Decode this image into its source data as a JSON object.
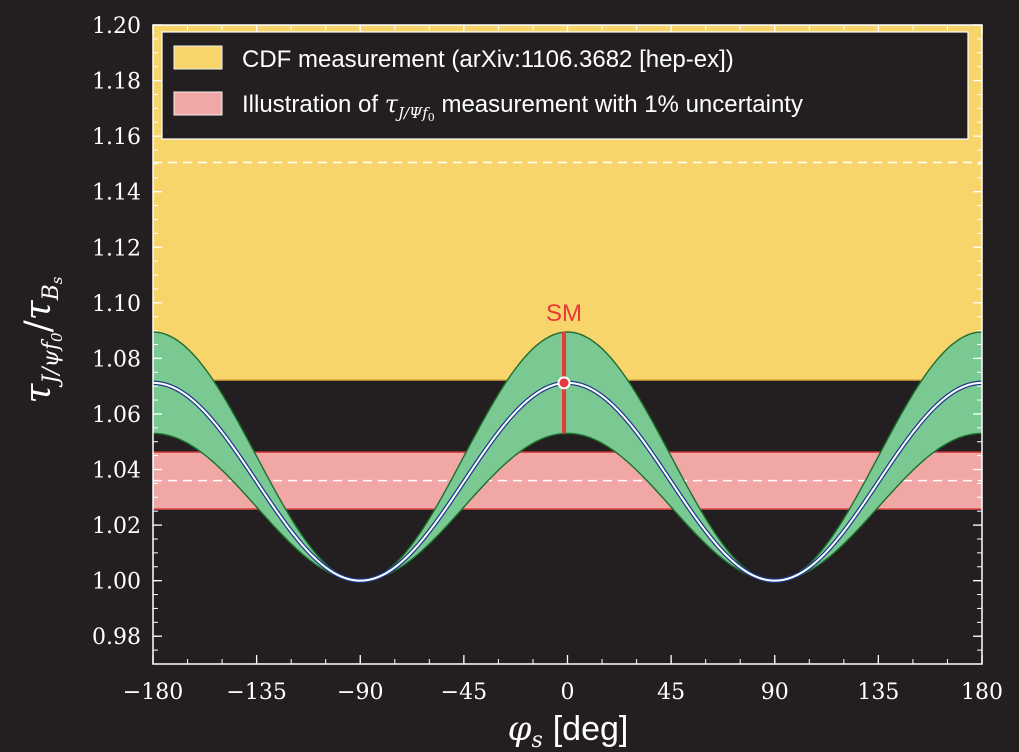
{
  "chart_data": {
    "type": "line",
    "xlabel_symbol": "φ",
    "xlabel_sub": "s",
    "xlabel_unit": "[deg]",
    "ylabel_tau1": "τ",
    "ylabel_sub1": "J/ψf",
    "ylabel_subsub1": "0",
    "ylabel_slash": "/",
    "ylabel_tau2": "τ",
    "ylabel_sub2": "B",
    "ylabel_subsub2": "s",
    "xlim": [
      -180,
      180
    ],
    "ylim": [
      0.97,
      1.2
    ],
    "x_ticks": [
      -180,
      -135,
      -90,
      -45,
      0,
      45,
      90,
      135,
      180
    ],
    "x_tick_labels": [
      "−180",
      "−135",
      "−90",
      "−45",
      "0",
      "45",
      "90",
      "135",
      "180"
    ],
    "y_ticks": [
      0.98,
      1.0,
      1.02,
      1.04,
      1.06,
      1.08,
      1.1,
      1.12,
      1.14,
      1.16,
      1.18,
      1.2
    ],
    "y_tick_labels": [
      "0.98",
      "1.00",
      "1.02",
      "1.04",
      "1.06",
      "1.08",
      "1.10",
      "1.12",
      "1.14",
      "1.16",
      "1.18",
      "1.20"
    ],
    "legend_position": "top",
    "legend": [
      {
        "text": "CDF measurement (arXiv:1106.3682 [hep-ex])",
        "color": "#f7d56a"
      },
      {
        "prefix": "Illustration of ",
        "sym": "τ",
        "sub": "J/Ψf",
        "subsub": "0",
        "suffix": " measurement with 1% uncertainty",
        "color": "#f2a7a7"
      }
    ],
    "series": [
      {
        "kind": "band",
        "color": "#f7d56a",
        "y_low": 1.0722,
        "y_high": 1.2,
        "dashed_line": 1.1505
      },
      {
        "kind": "band",
        "color": "#f2a7a7",
        "y_low": 1.0258,
        "y_high": 1.0462,
        "dashed_line": 1.036
      },
      {
        "kind": "cos_band",
        "color": "#7ac993",
        "edge_color": "#1e6e2e",
        "baseline": 1.0,
        "amp_low": 0.053,
        "amp_high": 0.0895
      },
      {
        "kind": "cos_curve",
        "color": "#ffffff",
        "edge_color": "#1f3a8a",
        "baseline": 1.0,
        "amp": 0.0712
      }
    ],
    "annotation": {
      "text": "SM",
      "color": "#e8393a",
      "x": -1.5,
      "y_low": 1.053,
      "y_high": 1.0895,
      "point_y": 1.0712
    }
  }
}
